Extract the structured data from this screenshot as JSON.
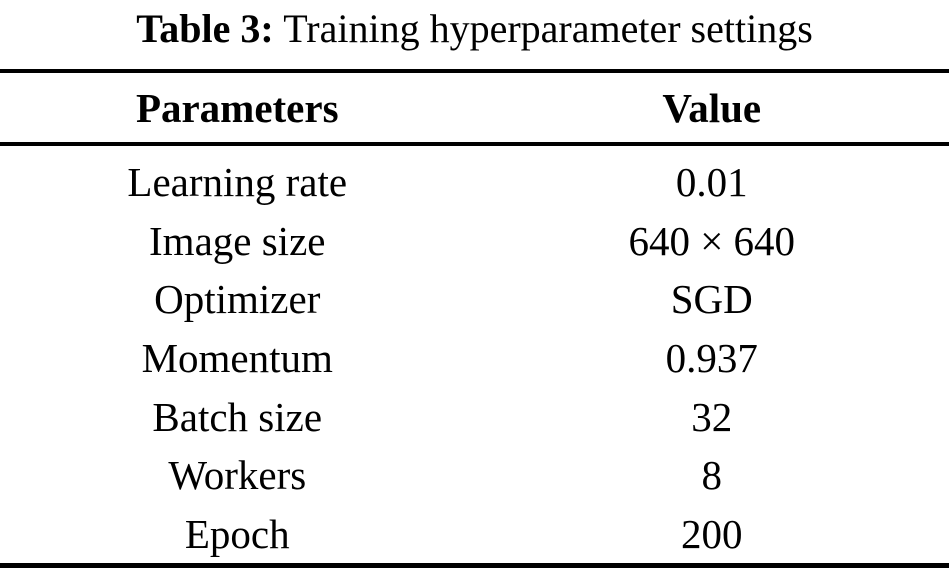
{
  "caption": {
    "label": "Table 3:",
    "text": "Training hyperparameter settings"
  },
  "columns": [
    "Parameters",
    "Value"
  ],
  "rows": [
    {
      "parameter": "Learning rate",
      "value": "0.01"
    },
    {
      "parameter": "Image size",
      "value": "640 × 640"
    },
    {
      "parameter": "Optimizer",
      "value": "SGD"
    },
    {
      "parameter": "Momentum",
      "value": "0.937"
    },
    {
      "parameter": "Batch size",
      "value": "32"
    },
    {
      "parameter": "Workers",
      "value": "8"
    },
    {
      "parameter": "Epoch",
      "value": "200"
    }
  ],
  "colors": {
    "background": "#ffffff",
    "text": "#000000",
    "rule": "#000000"
  }
}
